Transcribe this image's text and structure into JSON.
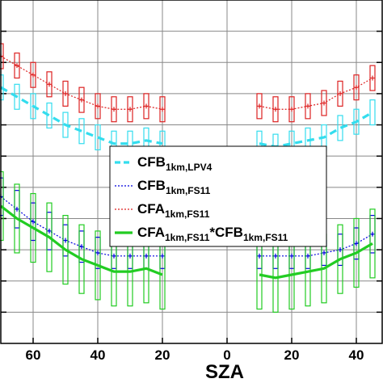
{
  "chart_data": {
    "type": "line",
    "xlabel": "SZA",
    "x_ticks": [
      "60",
      "40",
      "20",
      "0",
      "20",
      "40"
    ],
    "x_tick_values": [
      -60,
      -40,
      -20,
      0,
      20,
      40
    ],
    "xlim": [
      -70,
      48
    ],
    "ylim": [
      0,
      1.1
    ],
    "y_gridlines": [
      0.1,
      0.2,
      0.3,
      0.4,
      0.5,
      0.6,
      0.7,
      0.8,
      0.9,
      1.0
    ],
    "grid": true,
    "legend_position": "center",
    "series": [
      {
        "legend_main": "CFB",
        "legend_sub": "1km,LPV4",
        "legend_main2": "",
        "legend_sub2": "",
        "color": "#33ddee",
        "style": "dashed-thick",
        "x": [
          -70,
          -65,
          -60,
          -55,
          -50,
          -45,
          -40,
          -35,
          -30,
          -25,
          -20,
          10,
          15,
          20,
          25,
          30,
          35,
          40,
          45
        ],
        "y": [
          0.82,
          0.79,
          0.76,
          0.73,
          0.7,
          0.68,
          0.66,
          0.64,
          0.64,
          0.65,
          0.64,
          0.64,
          0.63,
          0.64,
          0.65,
          0.66,
          0.69,
          0.71,
          0.74
        ],
        "err": [
          0.04,
          0.04,
          0.04,
          0.04,
          0.04,
          0.04,
          0.04,
          0.04,
          0.04,
          0.04,
          0.04,
          0.04,
          0.04,
          0.04,
          0.04,
          0.04,
          0.04,
          0.04,
          0.04
        ]
      },
      {
        "legend_main": "CFB",
        "legend_sub": "1km,FS11",
        "legend_main2": "",
        "legend_sub2": "",
        "color": "#0000dd",
        "style": "dotted",
        "x": [
          -70,
          -65,
          -60,
          -55,
          -50,
          -45,
          -40,
          -35,
          -30,
          -25,
          -20,
          10,
          15,
          20,
          25,
          30,
          35,
          40,
          45
        ],
        "y": [
          0.47,
          0.43,
          0.39,
          0.36,
          0.33,
          0.31,
          0.29,
          0.28,
          0.28,
          0.28,
          0.28,
          0.28,
          0.28,
          0.28,
          0.28,
          0.29,
          0.3,
          0.32,
          0.35
        ],
        "err": [
          0.06,
          0.06,
          0.06,
          0.06,
          0.05,
          0.05,
          0.05,
          0.04,
          0.04,
          0.04,
          0.04,
          0.04,
          0.04,
          0.04,
          0.04,
          0.04,
          0.05,
          0.05,
          0.06
        ]
      },
      {
        "legend_main": "CFA",
        "legend_sub": "1km,FS11",
        "legend_main2": "",
        "legend_sub2": "",
        "color": "#dd2222",
        "style": "dotted",
        "x": [
          -70,
          -65,
          -60,
          -55,
          -50,
          -45,
          -40,
          -35,
          -30,
          -25,
          -20,
          10,
          15,
          20,
          25,
          30,
          35,
          40,
          45
        ],
        "y": [
          0.92,
          0.89,
          0.86,
          0.83,
          0.8,
          0.78,
          0.76,
          0.75,
          0.75,
          0.76,
          0.75,
          0.76,
          0.75,
          0.75,
          0.76,
          0.77,
          0.8,
          0.82,
          0.85
        ],
        "err": [
          0.04,
          0.04,
          0.04,
          0.04,
          0.04,
          0.04,
          0.04,
          0.04,
          0.04,
          0.04,
          0.04,
          0.04,
          0.04,
          0.04,
          0.04,
          0.04,
          0.04,
          0.04,
          0.04
        ]
      },
      {
        "legend_main": "CFA",
        "legend_sub": "1km,FS11",
        "legend_main2": "*CFB",
        "legend_sub2": "1km,FS11",
        "color": "#22cc22",
        "style": "solid-thick",
        "x": [
          -70,
          -65,
          -60,
          -55,
          -50,
          -45,
          -40,
          -35,
          -30,
          -25,
          -20,
          10,
          15,
          20,
          25,
          30,
          35,
          40,
          45
        ],
        "y": [
          0.44,
          0.4,
          0.37,
          0.34,
          0.3,
          0.27,
          0.25,
          0.23,
          0.23,
          0.24,
          0.22,
          0.22,
          0.21,
          0.22,
          0.23,
          0.24,
          0.27,
          0.29,
          0.32
        ],
        "err": [
          0.11,
          0.11,
          0.11,
          0.11,
          0.11,
          0.11,
          0.11,
          0.11,
          0.11,
          0.11,
          0.11,
          0.11,
          0.11,
          0.11,
          0.11,
          0.11,
          0.11,
          0.11,
          0.11
        ]
      }
    ]
  }
}
